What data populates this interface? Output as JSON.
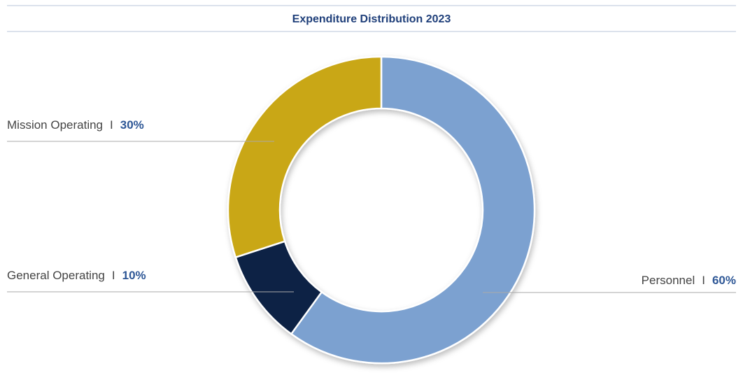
{
  "chart_data": {
    "type": "donut",
    "title": "Expenditure Distribution 2023",
    "categories": [
      "Personnel",
      "General Operating",
      "Mission Operating"
    ],
    "values": [
      60,
      10,
      30
    ],
    "value_labels": [
      "60%",
      "10%",
      "30%"
    ],
    "colors": [
      "#7ba1d0",
      "#0f2444",
      "#c9a714"
    ],
    "label_separator": "I"
  }
}
